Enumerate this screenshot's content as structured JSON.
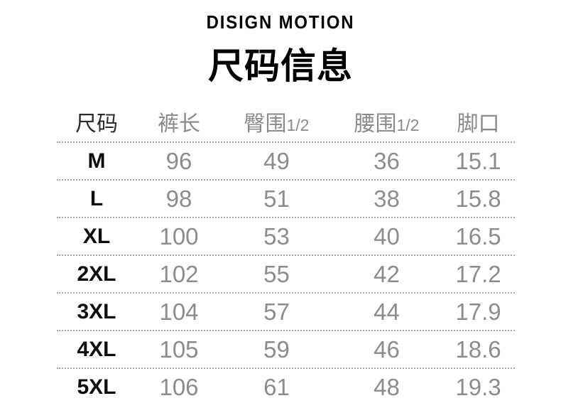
{
  "brand": "DISIGN MOTION",
  "title": "尺码信息",
  "chart_data": {
    "type": "table",
    "title": "尺码信息",
    "columns": [
      {
        "label": "尺码",
        "suffix": ""
      },
      {
        "label": "裤长",
        "suffix": ""
      },
      {
        "label": "臀围",
        "suffix": "1/2"
      },
      {
        "label": "腰围",
        "suffix": "1/2"
      },
      {
        "label": "脚口",
        "suffix": ""
      }
    ],
    "rows": [
      {
        "size": "M",
        "values": [
          "96",
          "49",
          "36",
          "15.1"
        ]
      },
      {
        "size": "L",
        "values": [
          "98",
          "51",
          "38",
          "15.8"
        ]
      },
      {
        "size": "XL",
        "values": [
          "100",
          "53",
          "40",
          "16.5"
        ]
      },
      {
        "size": "2XL",
        "values": [
          "102",
          "55",
          "42",
          "17.2"
        ]
      },
      {
        "size": "3XL",
        "values": [
          "104",
          "57",
          "44",
          "17.9"
        ]
      },
      {
        "size": "4XL",
        "values": [
          "105",
          "59",
          "46",
          "18.6"
        ]
      },
      {
        "size": "5XL",
        "values": [
          "106",
          "61",
          "48",
          "19.3"
        ]
      }
    ]
  },
  "colors": {
    "background": "#ffffff",
    "title_text": "#000000",
    "size_header_text": "#2b2b2b",
    "column_header_text": "#8a8a8a",
    "size_label_text": "#0d0d0d",
    "value_text": "#8c8c8c",
    "divider_dotted": "#a6a6a6"
  }
}
